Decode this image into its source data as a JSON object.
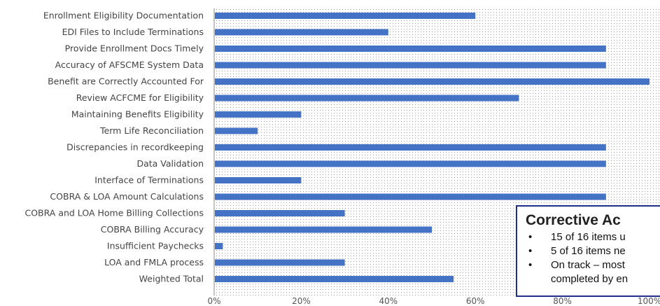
{
  "chart_data": {
    "type": "bar",
    "orientation": "horizontal",
    "categories": [
      "Enrollment Eligibility Documentation",
      "EDI Files to Include Terminations",
      "Provide Enrollment Docs Timely",
      "Accuracy of AFSCME System Data",
      "Benefit are Correctly Accounted For",
      "Review ACFCME for Eligibility",
      "Maintaining Benefits Eligibility",
      "Term Life Reconciliation",
      "Discrepancies in recordkeeping",
      "Data Validation",
      "Interface of Terminations",
      "COBRA & LOA Amount Calculations",
      "COBRA and LOA Home Billing Collections",
      "COBRA Billing Accuracy",
      "Insufficient Paychecks",
      "LOA and FMLA process",
      "Weighted Total"
    ],
    "values": [
      0.6,
      0.4,
      0.9,
      0.9,
      1.0,
      0.7,
      0.2,
      0.1,
      0.9,
      0.9,
      0.2,
      0.9,
      0.3,
      0.5,
      0.02,
      0.3,
      0.55
    ],
    "xlim": [
      0,
      1
    ],
    "x_ticks": [
      "0%",
      "20%",
      "40%",
      "60%",
      "80%",
      "100%"
    ],
    "bar_color": "#4472c4",
    "background_pattern": "dotted"
  },
  "callout": {
    "title": "Corrective Ac",
    "items": [
      {
        "line1": "15 of 16 items u"
      },
      {
        "line1": "5 of 16 items ne"
      },
      {
        "line1": "On track – most",
        "line2": "completed by en"
      }
    ]
  }
}
